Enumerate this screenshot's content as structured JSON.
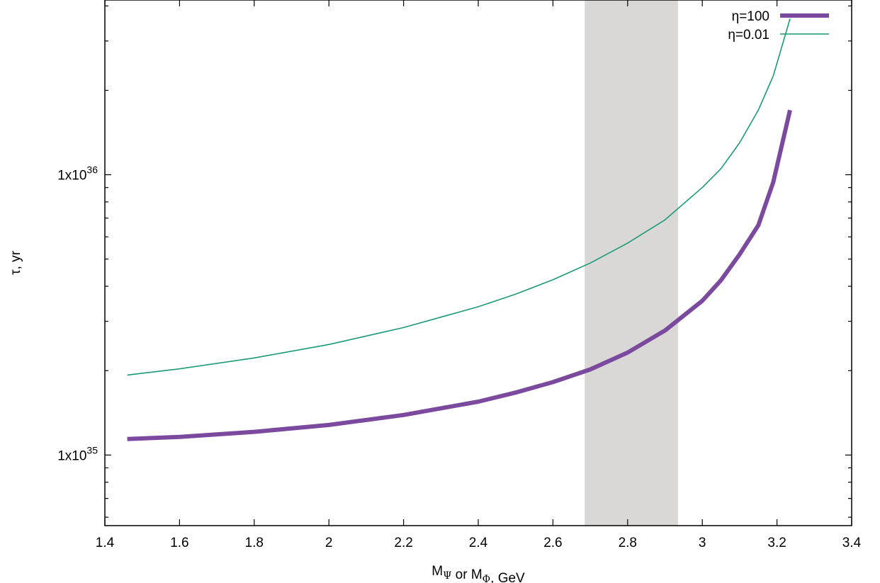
{
  "chart_data": {
    "type": "line",
    "title": "",
    "xlabel": {
      "parts": [
        {
          "text": "M",
          "sub": false
        },
        {
          "text": "Ψ",
          "sub": true
        },
        {
          "text": " or M",
          "sub": false
        },
        {
          "text": "Φ",
          "sub": true
        },
        {
          "text": ", GeV",
          "sub": false
        }
      ]
    },
    "ylabel": "τ, yr",
    "xlim": [
      1.4,
      3.4
    ],
    "ylim": [
      5.6e+34,
      4.2e+36
    ],
    "yscale": "log",
    "grid": false,
    "legend_position": "top-right",
    "x_ticks": [
      {
        "value": 1.4,
        "label": "1.4"
      },
      {
        "value": 1.6,
        "label": "1.6"
      },
      {
        "value": 1.8,
        "label": "1.8"
      },
      {
        "value": 2.0,
        "label": "2"
      },
      {
        "value": 2.2,
        "label": "2.2"
      },
      {
        "value": 2.4,
        "label": "2.4"
      },
      {
        "value": 2.6,
        "label": "2.6"
      },
      {
        "value": 2.8,
        "label": "2.8"
      },
      {
        "value": 3.0,
        "label": "3"
      },
      {
        "value": 3.2,
        "label": "3.2"
      },
      {
        "value": 3.4,
        "label": "3.4"
      }
    ],
    "y_major_ticks": [
      {
        "value": 1e+35,
        "mantissa": "1x10",
        "exponent": "35"
      },
      {
        "value": 1e+36,
        "mantissa": "1x10",
        "exponent": "36"
      }
    ],
    "shaded_band": {
      "x_start": 2.685,
      "x_end": 2.935,
      "color": "#d9d8d6"
    },
    "series": [
      {
        "name": "η=100",
        "color": "#7b4a9e",
        "line_width": "thick",
        "x": [
          1.46,
          1.6,
          1.8,
          2.0,
          2.2,
          2.4,
          2.5,
          2.6,
          2.7,
          2.8,
          2.9,
          3.0,
          3.05,
          3.1,
          3.15,
          3.19,
          3.235
        ],
        "y": [
          1.14e+35,
          1.16e+35,
          1.21e+35,
          1.28e+35,
          1.39e+35,
          1.55e+35,
          1.67e+35,
          1.82e+35,
          2.02e+35,
          2.32e+35,
          2.78e+35,
          3.55e+35,
          4.2e+35,
          5.2e+35,
          6.6e+35,
          9.4e+35,
          1.7e+36
        ]
      },
      {
        "name": "η=0.01",
        "color": "#1a9a78",
        "line_width": "thin",
        "x": [
          1.46,
          1.6,
          1.8,
          2.0,
          2.2,
          2.4,
          2.5,
          2.6,
          2.7,
          2.8,
          2.9,
          3.0,
          3.05,
          3.1,
          3.15,
          3.19,
          3.235
        ],
        "y": [
          1.93e+35,
          2.03e+35,
          2.22e+35,
          2.48e+35,
          2.85e+35,
          3.38e+35,
          3.75e+35,
          4.22e+35,
          4.84e+35,
          5.7e+35,
          6.9e+35,
          9e+35,
          1.05e+36,
          1.3e+36,
          1.7e+36,
          2.25e+36,
          3.6e+36
        ]
      }
    ]
  }
}
